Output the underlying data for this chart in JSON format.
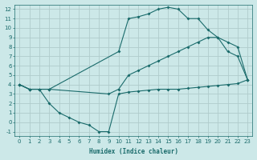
{
  "xlabel": "Humidex (Indice chaleur)",
  "background_color": "#cce8e8",
  "grid_color": "#b0cccc",
  "line_color": "#1a6b6b",
  "xlim": [
    -0.5,
    23.5
  ],
  "ylim": [
    -1.5,
    12.5
  ],
  "xticks": [
    0,
    1,
    2,
    3,
    4,
    5,
    6,
    7,
    8,
    9,
    10,
    11,
    12,
    13,
    14,
    15,
    16,
    17,
    18,
    19,
    20,
    21,
    22,
    23
  ],
  "yticks": [
    -1,
    0,
    1,
    2,
    3,
    4,
    5,
    6,
    7,
    8,
    9,
    10,
    11,
    12
  ],
  "curve1_x": [
    0,
    1,
    2,
    3,
    10,
    11,
    12,
    13,
    14,
    15,
    16,
    17,
    18,
    19,
    20,
    21,
    22,
    23
  ],
  "curve1_y": [
    4,
    3.5,
    3.5,
    3.5,
    7.5,
    11,
    11.2,
    11.5,
    12,
    12.2,
    12,
    11,
    11,
    9.8,
    9,
    7.5,
    7,
    4.5
  ],
  "curve2_x": [
    0,
    1,
    2,
    3,
    9,
    10,
    11,
    12,
    13,
    14,
    15,
    16,
    17,
    18,
    19,
    20,
    21,
    22,
    23
  ],
  "curve2_y": [
    4,
    3.5,
    3.5,
    3.5,
    3,
    3.5,
    5,
    5.5,
    6,
    6.5,
    7,
    7.5,
    8,
    8.5,
    9,
    9,
    8.5,
    8,
    4.5
  ],
  "curve3_x": [
    0,
    1,
    2,
    3,
    4,
    5,
    6,
    7,
    8,
    9,
    10,
    11,
    12,
    13,
    14,
    15,
    16,
    17,
    18,
    19,
    20,
    21,
    22,
    23
  ],
  "curve3_y": [
    4,
    3.5,
    3.5,
    2,
    1,
    0.5,
    0,
    -0.3,
    -1,
    -1,
    3,
    3.2,
    3.3,
    3.4,
    3.5,
    3.5,
    3.5,
    3.6,
    3.7,
    3.8,
    3.9,
    4.0,
    4.1,
    4.5
  ]
}
